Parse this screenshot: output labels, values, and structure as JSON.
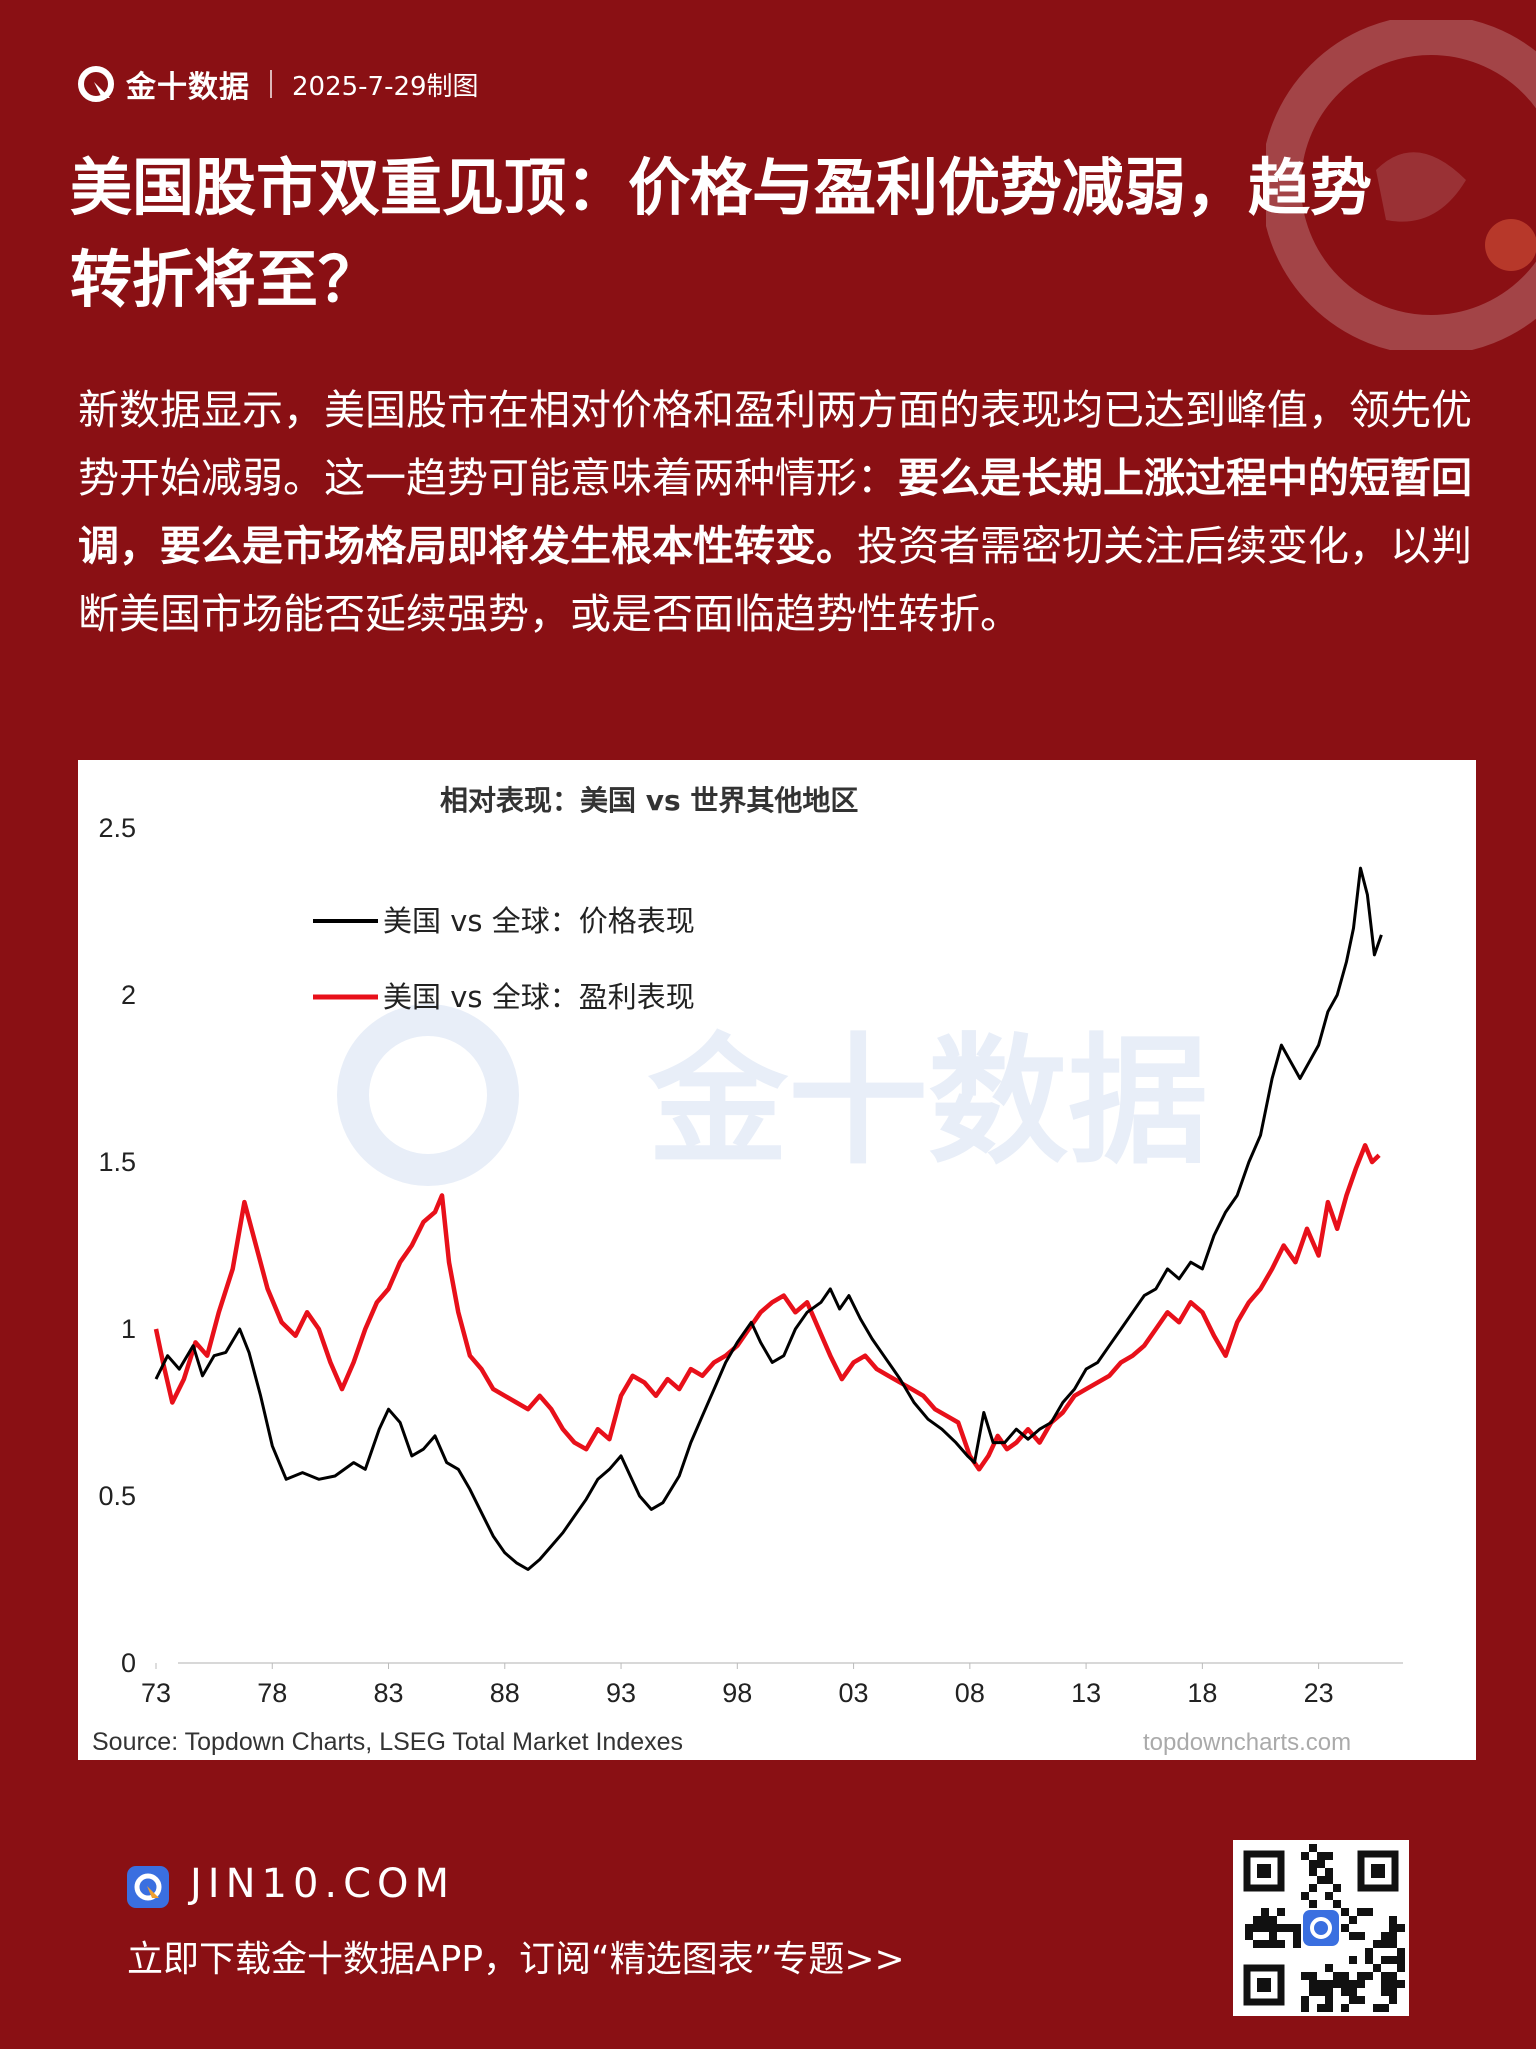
{
  "header": {
    "brand": "金十数据",
    "date": "2025-7-29制图"
  },
  "title": "美国股市双重见顶：价格与盈利优势减弱，趋势转折将至？",
  "body": {
    "p1": "新数据显示，美国股市在相对价格和盈利两方面的表现均已达到峰值，领先优势开始减弱。这一趋势可能意味着两种情形：",
    "p2_bold": "要么是长期上涨过程中的短暂回调，要么是市场格局即将发生根本性转变。",
    "p3": "投资者需密切关注后续变化，以判断美国市场能否延续强势，或是否面临趋势性转折。"
  },
  "watermark": "金十数据",
  "chart_data": {
    "type": "line",
    "title": "相对表现：美国 vs 世界其他地区",
    "xlabel": "",
    "ylabel": "",
    "x_ticks": [
      "73",
      "78",
      "83",
      "88",
      "93",
      "98",
      "03",
      "08",
      "13",
      "18",
      "23"
    ],
    "y_ticks": [
      "0",
      "0.5",
      "1",
      "1.5",
      "2",
      "2.5"
    ],
    "xlim": [
      1973,
      2026.5
    ],
    "ylim": [
      0,
      2.5
    ],
    "source": "Source: Topdown Charts, LSEG Total Market Indexes",
    "credit": "topdowncharts.com",
    "legend_position": "top-left",
    "series": [
      {
        "name": "美国 vs 全球：价格表现",
        "color": "#000000",
        "points": [
          [
            1973,
            0.85
          ],
          [
            1973.5,
            0.92
          ],
          [
            1974,
            0.88
          ],
          [
            1974.6,
            0.95
          ],
          [
            1975,
            0.86
          ],
          [
            1975.5,
            0.92
          ],
          [
            1976,
            0.93
          ],
          [
            1976.6,
            1.0
          ],
          [
            1977,
            0.93
          ],
          [
            1977.5,
            0.8
          ],
          [
            1978,
            0.65
          ],
          [
            1978.6,
            0.55
          ],
          [
            1979.3,
            0.57
          ],
          [
            1980,
            0.55
          ],
          [
            1980.7,
            0.56
          ],
          [
            1981.5,
            0.6
          ],
          [
            1982,
            0.58
          ],
          [
            1982.6,
            0.7
          ],
          [
            1983,
            0.76
          ],
          [
            1983.5,
            0.72
          ],
          [
            1984,
            0.62
          ],
          [
            1984.5,
            0.64
          ],
          [
            1985,
            0.68
          ],
          [
            1985.5,
            0.6
          ],
          [
            1986,
            0.58
          ],
          [
            1986.5,
            0.52
          ],
          [
            1987,
            0.45
          ],
          [
            1987.5,
            0.38
          ],
          [
            1988,
            0.33
          ],
          [
            1988.5,
            0.3
          ],
          [
            1989,
            0.28
          ],
          [
            1989.5,
            0.31
          ],
          [
            1990,
            0.35
          ],
          [
            1990.5,
            0.39
          ],
          [
            1991,
            0.44
          ],
          [
            1991.5,
            0.49
          ],
          [
            1992,
            0.55
          ],
          [
            1992.5,
            0.58
          ],
          [
            1993,
            0.62
          ],
          [
            1993.4,
            0.56
          ],
          [
            1993.8,
            0.5
          ],
          [
            1994.3,
            0.46
          ],
          [
            1994.8,
            0.48
          ],
          [
            1995.5,
            0.56
          ],
          [
            1996,
            0.66
          ],
          [
            1996.5,
            0.74
          ],
          [
            1997,
            0.82
          ],
          [
            1997.5,
            0.9
          ],
          [
            1998,
            0.96
          ],
          [
            1998.6,
            1.02
          ],
          [
            1999,
            0.96
          ],
          [
            1999.5,
            0.9
          ],
          [
            2000,
            0.92
          ],
          [
            2000.5,
            1.0
          ],
          [
            2001,
            1.05
          ],
          [
            2001.6,
            1.08
          ],
          [
            2002,
            1.12
          ],
          [
            2002.4,
            1.06
          ],
          [
            2002.8,
            1.1
          ],
          [
            2003.3,
            1.03
          ],
          [
            2003.8,
            0.97
          ],
          [
            2004.3,
            0.92
          ],
          [
            2005,
            0.85
          ],
          [
            2005.6,
            0.78
          ],
          [
            2006.2,
            0.73
          ],
          [
            2006.8,
            0.7
          ],
          [
            2007.4,
            0.66
          ],
          [
            2007.9,
            0.62
          ],
          [
            2008.2,
            0.6
          ],
          [
            2008.6,
            0.75
          ],
          [
            2009,
            0.66
          ],
          [
            2009.5,
            0.66
          ],
          [
            2010,
            0.7
          ],
          [
            2010.5,
            0.67
          ],
          [
            2011,
            0.7
          ],
          [
            2011.5,
            0.72
          ],
          [
            2012,
            0.78
          ],
          [
            2012.5,
            0.82
          ],
          [
            2013,
            0.88
          ],
          [
            2013.5,
            0.9
          ],
          [
            2014,
            0.95
          ],
          [
            2014.5,
            1.0
          ],
          [
            2015,
            1.05
          ],
          [
            2015.5,
            1.1
          ],
          [
            2016,
            1.12
          ],
          [
            2016.5,
            1.18
          ],
          [
            2017,
            1.15
          ],
          [
            2017.5,
            1.2
          ],
          [
            2018,
            1.18
          ],
          [
            2018.5,
            1.28
          ],
          [
            2019,
            1.35
          ],
          [
            2019.5,
            1.4
          ],
          [
            2020,
            1.5
          ],
          [
            2020.5,
            1.58
          ],
          [
            2021,
            1.75
          ],
          [
            2021.4,
            1.85
          ],
          [
            2021.8,
            1.8
          ],
          [
            2022.2,
            1.75
          ],
          [
            2022.6,
            1.8
          ],
          [
            2023,
            1.85
          ],
          [
            2023.4,
            1.95
          ],
          [
            2023.8,
            2.0
          ],
          [
            2024.2,
            2.1
          ],
          [
            2024.5,
            2.2
          ],
          [
            2024.8,
            2.38
          ],
          [
            2025.1,
            2.3
          ],
          [
            2025.4,
            2.12
          ],
          [
            2025.7,
            2.18
          ]
        ]
      },
      {
        "name": "美国 vs 全球：盈利表现",
        "color": "#e8101a",
        "points": [
          [
            1973,
            1.0
          ],
          [
            1973.3,
            0.9
          ],
          [
            1973.7,
            0.78
          ],
          [
            1974.2,
            0.85
          ],
          [
            1974.7,
            0.96
          ],
          [
            1975.2,
            0.92
          ],
          [
            1975.7,
            1.05
          ],
          [
            1976.3,
            1.18
          ],
          [
            1976.8,
            1.38
          ],
          [
            1977.3,
            1.25
          ],
          [
            1977.8,
            1.12
          ],
          [
            1978.4,
            1.02
          ],
          [
            1979,
            0.98
          ],
          [
            1979.5,
            1.05
          ],
          [
            1980,
            1.0
          ],
          [
            1980.5,
            0.9
          ],
          [
            1981,
            0.82
          ],
          [
            1981.5,
            0.9
          ],
          [
            1982,
            1.0
          ],
          [
            1982.5,
            1.08
          ],
          [
            1983,
            1.12
          ],
          [
            1983.5,
            1.2
          ],
          [
            1984,
            1.25
          ],
          [
            1984.5,
            1.32
          ],
          [
            1985,
            1.35
          ],
          [
            1985.3,
            1.4
          ],
          [
            1985.6,
            1.2
          ],
          [
            1986,
            1.05
          ],
          [
            1986.5,
            0.92
          ],
          [
            1987,
            0.88
          ],
          [
            1987.5,
            0.82
          ],
          [
            1988,
            0.8
          ],
          [
            1988.5,
            0.78
          ],
          [
            1989,
            0.76
          ],
          [
            1989.5,
            0.8
          ],
          [
            1990,
            0.76
          ],
          [
            1990.5,
            0.7
          ],
          [
            1991,
            0.66
          ],
          [
            1991.5,
            0.64
          ],
          [
            1992,
            0.7
          ],
          [
            1992.5,
            0.67
          ],
          [
            1993,
            0.8
          ],
          [
            1993.5,
            0.86
          ],
          [
            1994,
            0.84
          ],
          [
            1994.5,
            0.8
          ],
          [
            1995,
            0.85
          ],
          [
            1995.5,
            0.82
          ],
          [
            1996,
            0.88
          ],
          [
            1996.5,
            0.86
          ],
          [
            1997,
            0.9
          ],
          [
            1997.5,
            0.92
          ],
          [
            1998,
            0.95
          ],
          [
            1998.5,
            1.0
          ],
          [
            1999,
            1.05
          ],
          [
            1999.5,
            1.08
          ],
          [
            2000,
            1.1
          ],
          [
            2000.5,
            1.05
          ],
          [
            2001,
            1.08
          ],
          [
            2001.5,
            1.0
          ],
          [
            2002,
            0.92
          ],
          [
            2002.5,
            0.85
          ],
          [
            2003,
            0.9
          ],
          [
            2003.5,
            0.92
          ],
          [
            2004,
            0.88
          ],
          [
            2004.5,
            0.86
          ],
          [
            2005,
            0.84
          ],
          [
            2005.5,
            0.82
          ],
          [
            2006,
            0.8
          ],
          [
            2006.5,
            0.76
          ],
          [
            2007,
            0.74
          ],
          [
            2007.5,
            0.72
          ],
          [
            2008,
            0.62
          ],
          [
            2008.4,
            0.58
          ],
          [
            2008.8,
            0.62
          ],
          [
            2009.2,
            0.68
          ],
          [
            2009.6,
            0.64
          ],
          [
            2010,
            0.66
          ],
          [
            2010.5,
            0.7
          ],
          [
            2011,
            0.66
          ],
          [
            2011.5,
            0.72
          ],
          [
            2012,
            0.75
          ],
          [
            2012.5,
            0.8
          ],
          [
            2013,
            0.82
          ],
          [
            2013.5,
            0.84
          ],
          [
            2014,
            0.86
          ],
          [
            2014.5,
            0.9
          ],
          [
            2015,
            0.92
          ],
          [
            2015.5,
            0.95
          ],
          [
            2016,
            1.0
          ],
          [
            2016.5,
            1.05
          ],
          [
            2017,
            1.02
          ],
          [
            2017.5,
            1.08
          ],
          [
            2018,
            1.05
          ],
          [
            2018.5,
            0.98
          ],
          [
            2019,
            0.92
          ],
          [
            2019.5,
            1.02
          ],
          [
            2020,
            1.08
          ],
          [
            2020.5,
            1.12
          ],
          [
            2021,
            1.18
          ],
          [
            2021.5,
            1.25
          ],
          [
            2022,
            1.2
          ],
          [
            2022.5,
            1.3
          ],
          [
            2023,
            1.22
          ],
          [
            2023.4,
            1.38
          ],
          [
            2023.8,
            1.3
          ],
          [
            2024.2,
            1.4
          ],
          [
            2024.6,
            1.48
          ],
          [
            2025,
            1.55
          ],
          [
            2025.3,
            1.5
          ],
          [
            2025.6,
            1.52
          ]
        ]
      }
    ]
  },
  "footer": {
    "site": "JIN10.COM",
    "cta": "立即下载金十数据APP，订阅“精选图表”专题>>"
  }
}
